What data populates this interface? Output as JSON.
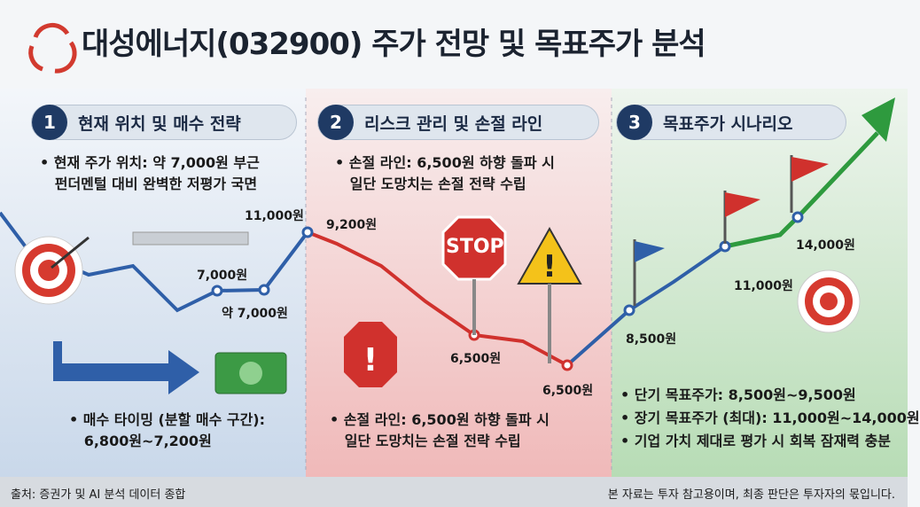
{
  "header": {
    "title": "대성에너지(032900) 주가 전망 및 목표주가 분석"
  },
  "sections": [
    {
      "number": "1",
      "title": "현재 위치 및 매수 전략",
      "bullets": [
        [
          "현재 주가 위치: 약 7,000원 부근",
          "펀더멘털 대비 완벽한 저평가 국면"
        ],
        [
          "매수 타이밍 (분할 매수 구간):",
          "6,800원~7,200원"
        ]
      ]
    },
    {
      "number": "2",
      "title": "리스크 관리 및 손절 라인",
      "bullets": [
        [
          "손절 라인: 6,500원 하향 돌파 시",
          "일단 도망치는 손절 전략 수립"
        ],
        [
          "손절 라인: 6,500원 하향 돌파 시",
          "일단 도망치는 손절 전략 수립"
        ]
      ]
    },
    {
      "number": "3",
      "title": "목표주가 시나리오",
      "bullets": [
        [
          "단기 목표주가: 8,500원~9,500원"
        ],
        [
          "장기 목표주가 (최대): 11,000원~14,000원"
        ],
        [
          "기업 가치 제대로 평가 시 회복 잠재력 충분"
        ]
      ]
    }
  ],
  "price_labels": [
    "11,000원",
    "7,000원",
    "약 7,000원",
    "9,200원",
    "6,500원",
    "6,500원",
    "8,500원",
    "11,000원",
    "14,000원"
  ],
  "sign": "STOP",
  "footer": {
    "source": "출처: 증권가 및 AI 분석 데이터 종합",
    "disclaimer": "본 자료는 투자 참고용이며, 최종 판단은 투자자의 몫입니다."
  }
}
